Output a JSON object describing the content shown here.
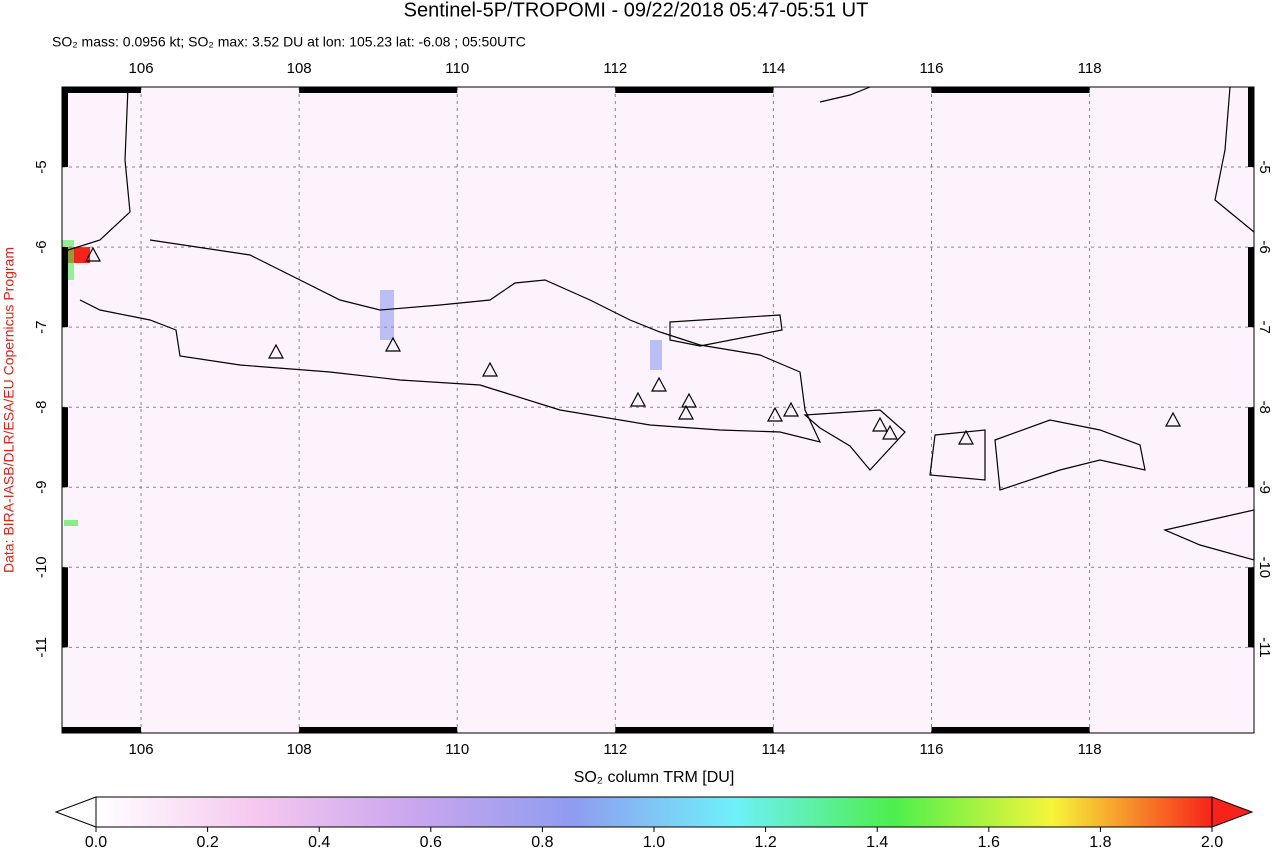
{
  "title": "Sentinel-5P/TROPOMI - 09/22/2018 05:47-05:51 UT",
  "subtitle": "SO₂ mass: 0.0956 kt; SO₂ max: 3.52 DU at lon: 105.23 lat: -6.08 ; 05:50UTC",
  "credit": "Data: BIRA-IASB/DLR/ESA/EU Copernicus Program",
  "map": {
    "xlim": [
      105,
      120.08
    ],
    "ylim": [
      -12.07,
      -4
    ],
    "xticks": [
      106,
      108,
      110,
      112,
      114,
      116,
      118
    ],
    "yticks": [
      -5,
      -6,
      -7,
      -8,
      -9,
      -10,
      -11
    ],
    "grid": true
  },
  "colorbar": {
    "label": "SO₂ column TRM [DU]",
    "lim": [
      0,
      2
    ],
    "ticks": [
      {
        "value": 0,
        "label": "0.0"
      },
      {
        "value": 0.2,
        "label": "0.2"
      },
      {
        "value": 0.4,
        "label": "0.4"
      },
      {
        "value": 0.6,
        "label": "0.6"
      },
      {
        "value": 0.8,
        "label": "0.8"
      },
      {
        "value": 1,
        "label": "1.0"
      },
      {
        "value": 1.2,
        "label": "1.2"
      },
      {
        "value": 1.4,
        "label": "1.4"
      },
      {
        "value": 1.6,
        "label": "1.6"
      },
      {
        "value": 1.8,
        "label": "1.8"
      },
      {
        "value": 2,
        "label": "2.0"
      }
    ],
    "colors": [
      "#ffffff",
      "#f5c8ef",
      "#c9a6ee",
      "#8f9cf0",
      "#6ff0fa",
      "#4cef4c",
      "#f6f53a",
      "#f7231a"
    ]
  }
}
